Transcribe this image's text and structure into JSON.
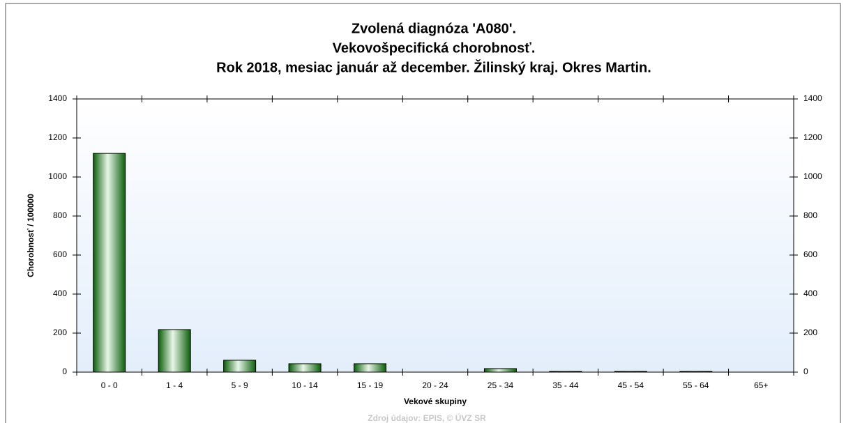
{
  "chart_data": {
    "type": "bar",
    "title": [
      "Zvolená diagnóza 'A080'.",
      "Vekovošpecifická chorobnosť.",
      "Rok 2018, mesiac január až december. Žilinský kraj. Okres Martin."
    ],
    "x_label": "Vekové skupiny",
    "y_label": "Chorobnosť / 100000",
    "footer": "Zdroj údajov: EPIS, © ÚVZ SR",
    "categories": [
      "0 - 0",
      "1 - 4",
      "5 - 9",
      "10 - 14",
      "15 - 19",
      "20 - 24",
      "25 - 34",
      "35 - 44",
      "45 - 54",
      "55 - 64",
      "65+"
    ],
    "values": [
      1121,
      218,
      61,
      43,
      43,
      0,
      18,
      4,
      4,
      4,
      0
    ],
    "color": "#1e8a1e",
    "ylim": [
      0,
      1400
    ],
    "yticks": [
      0,
      200,
      400,
      600,
      800,
      1000,
      1200,
      1400
    ]
  }
}
